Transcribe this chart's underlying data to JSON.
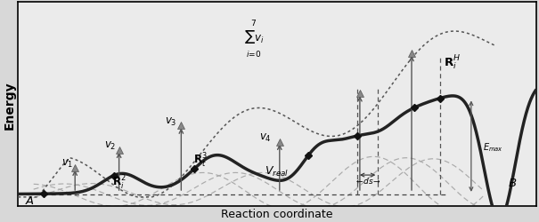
{
  "fig_width": 6.05,
  "fig_height": 2.51,
  "dpi": 100,
  "bg_color": "#d8d8d8",
  "panel_color": "#ebebeb",
  "main_curve_color": "#222222",
  "dotted_curve_color": "#666666",
  "dashed_curve_color": "#999999",
  "arrow_color": "#555555",
  "xlabel": "Reaction coordinate",
  "ylabel": "Energy",
  "A_label": "A",
  "B_label": "B",
  "xlim": [
    0,
    10
  ],
  "ylim": [
    0,
    3.8
  ]
}
